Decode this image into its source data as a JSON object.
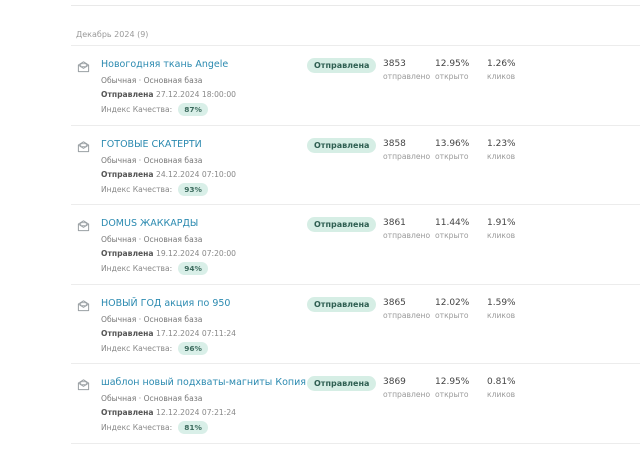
{
  "month_header": "Декабрь 2024 (9)",
  "campaigns": [
    {
      "title": "Новогодняя ткань Angele",
      "type": "Обычная · Основная база",
      "sent_label": "Отправлена",
      "sent_date": "27.12.2024 18:00:00",
      "quality_label": "Индекс Качества:",
      "quality": "87%",
      "status": "Отправлена",
      "sent_count": "3853",
      "sent_count_label": "отправлено",
      "open_rate": "12.95%",
      "open_label": "открыто",
      "click_rate": "1.26%",
      "click_label": "кликов"
    },
    {
      "title": "ГОТОВЫЕ СКАТЕРТИ",
      "type": "Обычная · Основная база",
      "sent_label": "Отправлена",
      "sent_date": "24.12.2024 07:10:00",
      "quality_label": "Индекс Качества:",
      "quality": "93%",
      "status": "Отправлена",
      "sent_count": "3858",
      "sent_count_label": "отправлено",
      "open_rate": "13.96%",
      "open_label": "открыто",
      "click_rate": "1.23%",
      "click_label": "кликов"
    },
    {
      "title": "DOMUS ЖАККАРДЫ",
      "type": "Обычная · Основная база",
      "sent_label": "Отправлена",
      "sent_date": "19.12.2024 07:20:00",
      "quality_label": "Индекс Качества:",
      "quality": "94%",
      "status": "Отправлена",
      "sent_count": "3861",
      "sent_count_label": "отправлено",
      "open_rate": "11.44%",
      "open_label": "открыто",
      "click_rate": "1.91%",
      "click_label": "кликов"
    },
    {
      "title": "НОВЫЙ ГОД акция по 950",
      "type": "Обычная · Основная база",
      "sent_label": "Отправлена",
      "sent_date": "17.12.2024 07:11:24",
      "quality_label": "Индекс Качества:",
      "quality": "96%",
      "status": "Отправлена",
      "sent_count": "3865",
      "sent_count_label": "отправлено",
      "open_rate": "12.02%",
      "open_label": "открыто",
      "click_rate": "1.59%",
      "click_label": "кликов"
    },
    {
      "title": "шаблон новый подхваты-магниты Копия",
      "type": "Обычная · Основная база",
      "sent_label": "Отправлена",
      "sent_date": "12.12.2024 07:21:24",
      "quality_label": "Индекс Качества:",
      "quality": "81%",
      "status": "Отправлена",
      "sent_count": "3869",
      "sent_count_label": "отправлено",
      "open_rate": "12.95%",
      "open_label": "открыто",
      "click_rate": "0.81%",
      "click_label": "кликов"
    }
  ]
}
